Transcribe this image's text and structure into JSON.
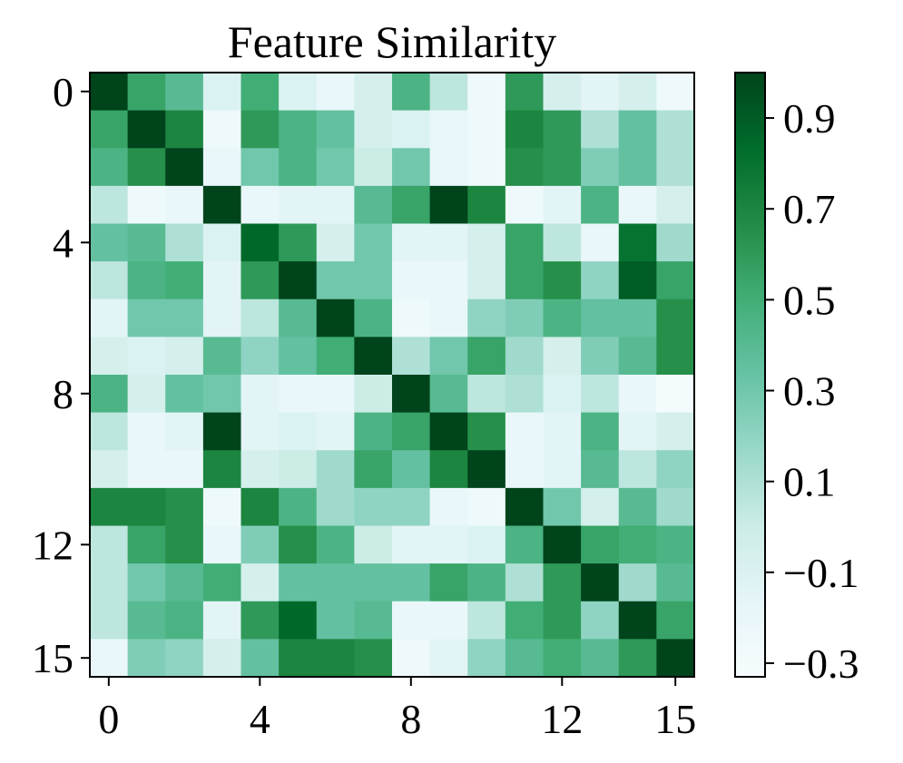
{
  "chart_data": {
    "type": "heatmap",
    "title": "Feature Similarity",
    "xlabel": "",
    "ylabel": "",
    "rows": 16,
    "cols": 16,
    "x_ticks": [
      0,
      4,
      8,
      12,
      15
    ],
    "y_ticks": [
      0,
      4,
      8,
      12,
      15
    ],
    "colormap": "BuGn",
    "vmin": -0.33,
    "vmax": 1.0,
    "colorbar": {
      "ticks": [
        -0.3,
        -0.1,
        0.1,
        0.3,
        0.5,
        0.7,
        0.9
      ],
      "tick_labels": [
        "−0.3",
        "−0.1",
        "0.1",
        "0.3",
        "0.5",
        "0.7",
        "0.9"
      ]
    },
    "colors": {
      "low": "#f7fcfd",
      "mid": "#66c2a4",
      "high": "#00441b"
    },
    "values": [
      [
        1.0,
        0.55,
        0.4,
        -0.1,
        0.5,
        -0.1,
        -0.2,
        -0.05,
        0.45,
        0.05,
        -0.25,
        0.6,
        -0.05,
        -0.15,
        -0.05,
        -0.25
      ],
      [
        0.55,
        1.0,
        0.7,
        -0.25,
        0.6,
        0.45,
        0.35,
        -0.05,
        -0.1,
        -0.2,
        -0.25,
        0.7,
        0.6,
        0.1,
        0.35,
        0.1
      ],
      [
        0.45,
        0.65,
        1.0,
        -0.2,
        0.3,
        0.45,
        0.3,
        0.0,
        0.3,
        -0.2,
        -0.25,
        0.65,
        0.6,
        0.25,
        0.35,
        0.1
      ],
      [
        0.05,
        -0.25,
        -0.2,
        1.0,
        -0.2,
        -0.15,
        -0.15,
        0.4,
        0.55,
        1.0,
        0.7,
        -0.25,
        -0.15,
        0.45,
        -0.2,
        -0.05
      ],
      [
        0.35,
        0.4,
        0.1,
        -0.1,
        0.85,
        0.6,
        -0.05,
        0.3,
        -0.15,
        -0.15,
        -0.05,
        0.55,
        0.05,
        -0.2,
        0.8,
        0.15
      ],
      [
        0.05,
        0.45,
        0.5,
        -0.15,
        0.6,
        1.0,
        0.3,
        0.3,
        -0.2,
        -0.2,
        -0.05,
        0.55,
        0.65,
        0.2,
        0.9,
        0.55
      ],
      [
        -0.15,
        0.3,
        0.3,
        -0.15,
        0.05,
        0.4,
        1.0,
        0.45,
        -0.25,
        -0.2,
        0.2,
        0.25,
        0.45,
        0.35,
        0.35,
        0.65
      ],
      [
        -0.05,
        -0.1,
        -0.05,
        0.4,
        0.2,
        0.35,
        0.5,
        1.0,
        0.1,
        0.3,
        0.55,
        0.15,
        -0.05,
        0.25,
        0.4,
        0.65
      ],
      [
        0.45,
        -0.05,
        0.35,
        0.3,
        -0.15,
        -0.2,
        -0.2,
        0.0,
        1.0,
        0.4,
        0.05,
        0.1,
        -0.1,
        0.05,
        -0.2,
        -0.3
      ],
      [
        0.05,
        -0.2,
        -0.15,
        1.0,
        -0.15,
        -0.1,
        -0.15,
        0.45,
        0.55,
        1.0,
        0.65,
        -0.2,
        -0.15,
        0.45,
        -0.15,
        -0.05
      ],
      [
        -0.05,
        -0.2,
        -0.2,
        0.7,
        -0.05,
        0.0,
        0.15,
        0.55,
        0.35,
        0.7,
        1.0,
        -0.2,
        -0.15,
        0.4,
        0.05,
        0.2
      ],
      [
        0.7,
        0.7,
        0.65,
        -0.25,
        0.7,
        0.45,
        0.15,
        0.2,
        0.2,
        -0.2,
        -0.25,
        1.0,
        0.3,
        -0.05,
        0.4,
        0.15
      ],
      [
        0.05,
        0.55,
        0.65,
        -0.2,
        0.25,
        0.65,
        0.45,
        0.0,
        -0.15,
        -0.15,
        -0.1,
        0.45,
        1.0,
        0.55,
        0.5,
        0.45
      ],
      [
        0.05,
        0.3,
        0.4,
        0.5,
        -0.05,
        0.35,
        0.35,
        0.35,
        0.35,
        0.55,
        0.45,
        0.1,
        0.6,
        1.0,
        0.15,
        0.4
      ],
      [
        0.05,
        0.4,
        0.45,
        -0.15,
        0.6,
        0.85,
        0.35,
        0.4,
        -0.2,
        -0.2,
        0.05,
        0.5,
        0.6,
        0.2,
        1.0,
        0.55
      ],
      [
        -0.2,
        0.25,
        0.2,
        -0.05,
        0.35,
        0.7,
        0.7,
        0.65,
        -0.25,
        -0.15,
        0.2,
        0.4,
        0.5,
        0.4,
        0.6,
        1.0
      ]
    ]
  }
}
